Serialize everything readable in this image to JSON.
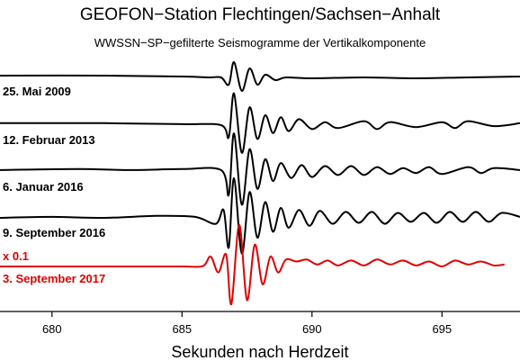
{
  "chart_data": {
    "type": "line",
    "title": "GEOFON−Station Flechtingen/Sachsen−Anhalt",
    "subtitle": "WWSSN−SP−gefilterte Seismogramme der Vertikalkomponente",
    "xlabel": "Sekunden nach Herdzeit",
    "ylabel": "",
    "xlim": [
      678,
      698
    ],
    "x_ticks": [
      680,
      685,
      690,
      695
    ],
    "x_tick_labels": [
      "680",
      "685",
      "690",
      "695"
    ],
    "grid": false,
    "legend": "none",
    "series": [
      {
        "name": "25. Mai 2009",
        "color": "#000000",
        "scale_note": "",
        "points": [
          [
            678,
            0.15
          ],
          [
            682,
            0.15
          ],
          [
            685,
            0.1
          ],
          [
            686,
            0.05
          ],
          [
            686.5,
            0.05
          ],
          [
            686.8,
            -0.35
          ],
          [
            687.0,
            0.9
          ],
          [
            687.3,
            -0.7
          ],
          [
            687.6,
            0.55
          ],
          [
            687.9,
            -0.35
          ],
          [
            688.2,
            0.2
          ],
          [
            688.6,
            -0.1
          ],
          [
            689,
            0.05
          ],
          [
            690,
            0.0
          ],
          [
            692,
            0.05
          ],
          [
            694,
            0.0
          ],
          [
            696,
            0.05
          ],
          [
            698,
            0.1
          ]
        ]
      },
      {
        "name": "12. Februar 2013",
        "color": "#000000",
        "scale_note": "",
        "points": [
          [
            678,
            0.1
          ],
          [
            682,
            0.1
          ],
          [
            685,
            0.05
          ],
          [
            686.5,
            0.0
          ],
          [
            686.8,
            -0.6
          ],
          [
            687.0,
            1.6
          ],
          [
            687.3,
            -1.4
          ],
          [
            687.6,
            0.9
          ],
          [
            687.9,
            -0.7
          ],
          [
            688.2,
            0.5
          ],
          [
            688.5,
            -0.4
          ],
          [
            688.8,
            0.4
          ],
          [
            689.1,
            -0.3
          ],
          [
            689.5,
            0.3
          ],
          [
            690,
            -0.2
          ],
          [
            690.5,
            0.15
          ],
          [
            691,
            -0.15
          ],
          [
            692,
            0.2
          ],
          [
            692.5,
            -0.2
          ],
          [
            693,
            0.15
          ],
          [
            694,
            -0.1
          ],
          [
            695,
            0.15
          ],
          [
            695.5,
            -0.15
          ],
          [
            696,
            0.2
          ],
          [
            697,
            -0.05
          ],
          [
            698,
            0.1
          ]
        ]
      },
      {
        "name": "6. Januar 2016",
        "color": "#000000",
        "scale_note": "",
        "points": [
          [
            678,
            0.05
          ],
          [
            681,
            0.1
          ],
          [
            683,
            0.05
          ],
          [
            685,
            0.1
          ],
          [
            686.5,
            0.05
          ],
          [
            686.8,
            -1.2
          ],
          [
            687.0,
            1.9
          ],
          [
            687.3,
            -1.7
          ],
          [
            687.6,
            1.1
          ],
          [
            687.9,
            -0.9
          ],
          [
            688.2,
            0.6
          ],
          [
            688.5,
            -0.5
          ],
          [
            688.8,
            0.4
          ],
          [
            689.2,
            -0.35
          ],
          [
            689.6,
            0.3
          ],
          [
            690,
            -0.3
          ],
          [
            690.5,
            0.25
          ],
          [
            691,
            -0.2
          ],
          [
            691.5,
            0.25
          ],
          [
            692,
            -0.2
          ],
          [
            692.5,
            0.2
          ],
          [
            693,
            -0.15
          ],
          [
            693.5,
            0.15
          ],
          [
            694,
            -0.1
          ],
          [
            694.5,
            0.2
          ],
          [
            695,
            -0.15
          ],
          [
            696,
            0.2
          ],
          [
            696.5,
            -0.1
          ],
          [
            697,
            0.15
          ],
          [
            698,
            0.05
          ]
        ]
      },
      {
        "name": "9. September 2016",
        "color": "#000000",
        "scale_note": "",
        "points": [
          [
            678,
            0.0
          ],
          [
            680,
            0.05
          ],
          [
            682,
            0.0
          ],
          [
            684,
            0.1
          ],
          [
            685.5,
            0.05
          ],
          [
            686.3,
            -0.3
          ],
          [
            686.6,
            0.4
          ],
          [
            686.8,
            -1.5
          ],
          [
            687.0,
            2.0
          ],
          [
            687.3,
            -1.8
          ],
          [
            687.6,
            1.3
          ],
          [
            687.9,
            -1.0
          ],
          [
            688.2,
            0.8
          ],
          [
            688.5,
            -0.7
          ],
          [
            688.8,
            0.5
          ],
          [
            689.1,
            -0.5
          ],
          [
            689.5,
            0.4
          ],
          [
            689.9,
            -0.4
          ],
          [
            690.3,
            0.35
          ],
          [
            690.8,
            -0.3
          ],
          [
            691.3,
            0.3
          ],
          [
            691.8,
            -0.25
          ],
          [
            692.3,
            0.3
          ],
          [
            692.8,
            -0.3
          ],
          [
            693.3,
            0.25
          ],
          [
            693.8,
            -0.2
          ],
          [
            694.3,
            0.25
          ],
          [
            694.8,
            -0.25
          ],
          [
            695.3,
            0.3
          ],
          [
            695.8,
            -0.2
          ],
          [
            696.3,
            0.3
          ],
          [
            696.8,
            -0.2
          ],
          [
            697.3,
            0.25
          ],
          [
            698,
            0.05
          ]
        ]
      },
      {
        "name": "3. September 2017",
        "color": "#e00000",
        "scale_note": "x 0.1",
        "points": [
          [
            678,
            0.0
          ],
          [
            683,
            0.0
          ],
          [
            685,
            0.0
          ],
          [
            685.8,
            0.02
          ],
          [
            686.1,
            0.5
          ],
          [
            686.4,
            -0.3
          ],
          [
            686.7,
            0.6
          ],
          [
            686.9,
            -1.9
          ],
          [
            687.2,
            2.1
          ],
          [
            687.5,
            -1.7
          ],
          [
            687.8,
            1.1
          ],
          [
            688.1,
            -0.9
          ],
          [
            688.4,
            0.5
          ],
          [
            688.7,
            -0.3
          ],
          [
            689.0,
            0.35
          ],
          [
            689.4,
            0.25
          ],
          [
            689.8,
            0.35
          ],
          [
            690.2,
            0.1
          ],
          [
            690.6,
            0.3
          ],
          [
            691.0,
            0.05
          ],
          [
            691.5,
            0.3
          ],
          [
            692.0,
            0.05
          ],
          [
            692.5,
            0.35
          ],
          [
            693.0,
            0.1
          ],
          [
            693.5,
            0.3
          ],
          [
            694.0,
            0.05
          ],
          [
            694.5,
            0.25
          ],
          [
            695.0,
            0.0
          ],
          [
            695.5,
            0.3
          ],
          [
            696.0,
            0.1
          ],
          [
            696.5,
            0.25
          ],
          [
            697.0,
            0.05
          ],
          [
            697.4,
            0.1
          ]
        ]
      }
    ]
  }
}
